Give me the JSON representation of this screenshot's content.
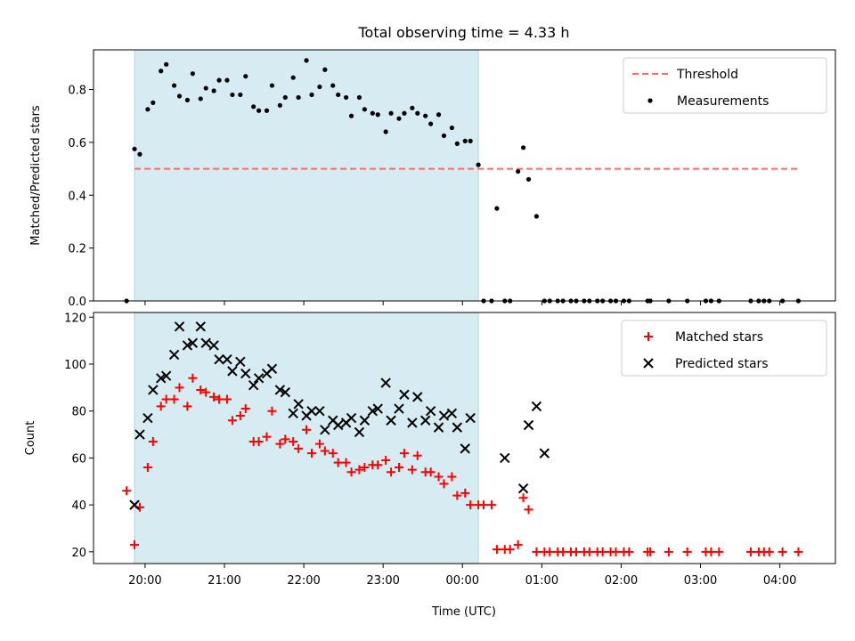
{
  "chart_data": {
    "title": "Total observing time = 4.33 h",
    "xlabel": "Time (UTC)",
    "x_tick_labels": [
      "20:00",
      "21:00",
      "22:00",
      "23:00",
      "00:00",
      "01:00",
      "02:00",
      "03:00",
      "04:00"
    ],
    "x_tick_hours": [
      20,
      21,
      22,
      23,
      24,
      25,
      26,
      27,
      28
    ],
    "xlim": [
      19.35,
      28.7
    ],
    "observing_window": {
      "start": "19:52",
      "end": "00:12",
      "color": "#add8e6"
    },
    "colors": {
      "threshold": "#ff6b6b",
      "measurements": "#000000",
      "matched": "#ff0000",
      "predicted": "#000000",
      "shade": "#add8e6"
    },
    "panels": [
      {
        "type": "scatter",
        "ylabel": "Matched/Predicted stars",
        "ylim": [
          0,
          0.95
        ],
        "y_ticks": [
          "0.0",
          "0.2",
          "0.4",
          "0.6",
          "0.8"
        ],
        "y_tick_values": [
          0,
          0.2,
          0.4,
          0.6,
          0.8
        ],
        "legend": {
          "position": "upper right",
          "entries": [
            "Threshold",
            "Measurements"
          ]
        },
        "threshold": {
          "name": "Threshold",
          "y": 0.5,
          "x_start": "19:52",
          "x_end": "04:15"
        },
        "series": [
          {
            "name": "Measurements",
            "marker": "dot",
            "x": [
              "19:46",
              "19:52",
              "19:56",
              "20:02",
              "20:06",
              "20:12",
              "20:16",
              "20:22",
              "20:26",
              "20:32",
              "20:36",
              "20:42",
              "20:46",
              "20:52",
              "20:56",
              "21:02",
              "21:06",
              "21:12",
              "21:16",
              "21:22",
              "21:26",
              "21:32",
              "21:36",
              "21:42",
              "21:46",
              "21:52",
              "21:56",
              "22:02",
              "22:06",
              "22:12",
              "22:16",
              "22:22",
              "22:26",
              "22:32",
              "22:36",
              "22:42",
              "22:46",
              "22:52",
              "22:56",
              "23:02",
              "23:06",
              "23:12",
              "23:16",
              "23:22",
              "23:26",
              "23:32",
              "23:36",
              "23:42",
              "23:46",
              "23:52",
              "23:56",
              "00:02",
              "00:06",
              "00:12",
              "00:16",
              "00:22",
              "00:26",
              "00:32",
              "00:36",
              "00:42",
              "00:46",
              "00:50",
              "00:56",
              "01:02",
              "01:06",
              "01:12",
              "01:16",
              "01:22",
              "01:26",
              "01:32",
              "01:36",
              "01:42",
              "01:46",
              "01:52",
              "01:56",
              "02:02",
              "02:06",
              "02:20",
              "02:22",
              "02:36",
              "02:50",
              "03:04",
              "03:08",
              "03:14",
              "03:38",
              "03:44",
              "03:48",
              "03:52",
              "04:02",
              "04:14"
            ],
            "y": [
              0.0,
              0.575,
              0.555,
              0.725,
              0.75,
              0.87,
              0.895,
              0.815,
              0.775,
              0.76,
              0.86,
              0.765,
              0.805,
              0.795,
              0.835,
              0.835,
              0.78,
              0.78,
              0.85,
              0.735,
              0.72,
              0.72,
              0.815,
              0.74,
              0.77,
              0.845,
              0.77,
              0.91,
              0.78,
              0.81,
              0.875,
              0.815,
              0.78,
              0.77,
              0.7,
              0.77,
              0.725,
              0.71,
              0.705,
              0.64,
              0.71,
              0.69,
              0.71,
              0.73,
              0.71,
              0.7,
              0.67,
              0.705,
              0.625,
              0.655,
              0.595,
              0.605,
              0.605,
              0.515,
              0.0,
              0.0,
              0.35,
              0.0,
              0.0,
              0.49,
              0.58,
              0.46,
              0.32,
              0.0,
              0.0,
              0.0,
              0.0,
              0.0,
              0.0,
              0.0,
              0.0,
              0.0,
              0.0,
              0.0,
              0.0,
              0.0,
              0.0,
              0.0,
              0.0,
              0.0,
              0.0,
              0.0,
              0.0,
              0.0,
              0.0,
              0.0,
              0.0,
              0.0,
              0.0,
              0.0
            ]
          }
        ]
      },
      {
        "type": "scatter",
        "ylabel": "Count",
        "ylim": [
          15,
          122
        ],
        "y_ticks": [
          "20",
          "40",
          "60",
          "80",
          "100",
          "120"
        ],
        "y_tick_values": [
          20,
          40,
          60,
          80,
          100,
          120
        ],
        "legend": {
          "position": "upper right",
          "entries": [
            "Matched stars",
            "Predicted stars"
          ]
        },
        "series": [
          {
            "name": "Matched stars",
            "marker": "plus",
            "x": [
              "19:46",
              "19:52",
              "19:56",
              "20:02",
              "20:06",
              "20:12",
              "20:16",
              "20:22",
              "20:26",
              "20:32",
              "20:36",
              "20:42",
              "20:46",
              "20:52",
              "20:56",
              "21:02",
              "21:06",
              "21:12",
              "21:16",
              "21:22",
              "21:26",
              "21:32",
              "21:36",
              "21:42",
              "21:46",
              "21:52",
              "21:56",
              "22:02",
              "22:06",
              "22:12",
              "22:16",
              "22:22",
              "22:26",
              "22:32",
              "22:36",
              "22:42",
              "22:46",
              "22:52",
              "22:56",
              "23:02",
              "23:06",
              "23:12",
              "23:16",
              "23:22",
              "23:26",
              "23:32",
              "23:36",
              "23:42",
              "23:46",
              "23:52",
              "23:56",
              "00:02",
              "00:06",
              "00:12",
              "00:16",
              "00:22",
              "00:26",
              "00:32",
              "00:36",
              "00:42",
              "00:46",
              "00:50",
              "00:56",
              "01:02",
              "01:06",
              "01:12",
              "01:16",
              "01:22",
              "01:26",
              "01:32",
              "01:36",
              "01:42",
              "01:46",
              "01:52",
              "01:56",
              "02:02",
              "02:06",
              "02:20",
              "02:22",
              "02:36",
              "02:50",
              "03:04",
              "03:08",
              "03:14",
              "03:38",
              "03:44",
              "03:48",
              "03:52",
              "04:02",
              "04:14"
            ],
            "y": [
              46,
              23,
              39,
              56,
              67,
              82,
              85,
              85,
              90,
              82,
              94,
              89,
              88,
              86,
              85,
              85,
              76,
              78,
              81,
              67,
              67,
              69,
              80,
              66,
              68,
              67,
              64,
              72,
              62,
              66,
              63,
              62,
              58,
              58,
              54,
              55,
              56,
              57,
              57,
              59,
              54,
              56,
              62,
              55,
              61,
              54,
              54,
              52,
              49,
              52,
              44,
              45,
              40,
              40,
              40,
              40,
              21,
              21,
              21,
              23,
              43,
              38,
              20,
              20,
              20,
              20,
              20,
              20,
              20,
              20,
              20,
              20,
              20,
              20,
              20,
              20,
              20,
              20,
              20,
              20,
              20,
              20,
              20,
              20,
              20,
              20,
              20,
              20,
              20,
              20
            ]
          },
          {
            "name": "Predicted stars",
            "marker": "x",
            "x": [
              "19:52",
              "19:56",
              "20:02",
              "20:06",
              "20:12",
              "20:16",
              "20:22",
              "20:26",
              "20:32",
              "20:36",
              "20:42",
              "20:46",
              "20:52",
              "20:56",
              "21:02",
              "21:06",
              "21:12",
              "21:16",
              "21:22",
              "21:26",
              "21:32",
              "21:36",
              "21:42",
              "21:46",
              "21:52",
              "21:56",
              "22:02",
              "22:06",
              "22:12",
              "22:16",
              "22:22",
              "22:26",
              "22:32",
              "22:36",
              "22:42",
              "22:46",
              "22:52",
              "22:56",
              "23:02",
              "23:06",
              "23:12",
              "23:16",
              "23:22",
              "23:26",
              "23:32",
              "23:36",
              "23:42",
              "23:46",
              "23:52",
              "23:56",
              "00:02",
              "00:06",
              "00:32",
              "00:46",
              "00:50",
              "00:56",
              "01:02"
            ],
            "y": [
              40,
              70,
              77,
              89,
              94,
              95,
              104,
              116,
              108,
              109,
              116,
              109,
              108,
              102,
              102,
              97,
              101,
              96,
              91,
              94,
              96,
              98,
              89,
              88,
              79,
              83,
              78,
              80,
              80,
              72,
              76,
              74,
              75,
              77,
              71,
              76,
              80,
              81,
              92,
              76,
              81,
              87,
              75,
              86,
              76,
              80,
              73,
              78,
              79,
              73,
              64,
              77,
              60,
              47,
              74,
              82,
              62
            ]
          }
        ]
      }
    ]
  }
}
